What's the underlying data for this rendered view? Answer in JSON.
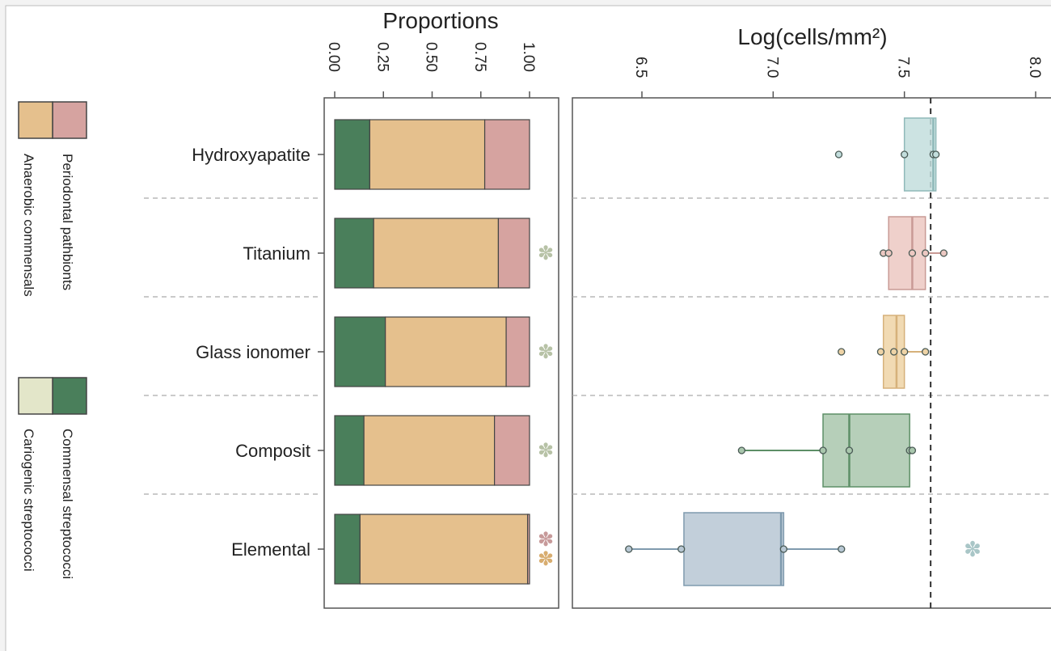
{
  "chart_data": [
    {
      "type": "bar",
      "orientation": "horizontal",
      "stacked": true,
      "title": "Proportions",
      "ticks": [
        "0.00",
        "0.25",
        "0.50",
        "0.75",
        "1.00"
      ],
      "xlim": [
        0,
        1
      ],
      "categories": [
        "Hydroxyapatite",
        "Titanium",
        "Glass ionomer",
        "Composit",
        "Elemental"
      ],
      "series": [
        {
          "name": "Cariogenic streptococci",
          "color": "#e3e6c9",
          "values": [
            0.0,
            0.0,
            0.0,
            0.0,
            0.0
          ]
        },
        {
          "name": "Commensal streptococci",
          "color": "#4a7f5b",
          "values": [
            0.18,
            0.2,
            0.26,
            0.15,
            0.13
          ]
        },
        {
          "name": "Anaerobic commensals",
          "color": "#e5c08d",
          "values": [
            0.59,
            0.64,
            0.62,
            0.67,
            0.86
          ]
        },
        {
          "name": "Periodontal pathbionts",
          "color": "#d6a3a0",
          "values": [
            0.23,
            0.16,
            0.12,
            0.18,
            0.01
          ]
        }
      ],
      "significance_markers": [
        {
          "category": "Titanium",
          "symbols": [
            "✽"
          ],
          "colors": [
            "#b7c2a6"
          ]
        },
        {
          "category": "Glass ionomer",
          "symbols": [
            "✽"
          ],
          "colors": [
            "#b7c2a6"
          ]
        },
        {
          "category": "Composit",
          "symbols": [
            "✽"
          ],
          "colors": [
            "#b7c2a6"
          ]
        },
        {
          "category": "Elemental",
          "symbols": [
            "✽",
            "✽"
          ],
          "colors": [
            "#c79a9a",
            "#d8ad70"
          ]
        }
      ],
      "grid": false,
      "legend_position": "left, rotated"
    },
    {
      "type": "box",
      "orientation": "horizontal",
      "title": "Log(cells/mm²)",
      "ticks": [
        "6.5",
        "7.0",
        "7.5",
        "8.0"
      ],
      "xlim": [
        6.15,
        8.1
      ],
      "reference_line": 7.6,
      "categories": [
        "Hydroxyapatite",
        "Titanium",
        "Glass ionomer",
        "Composit",
        "Elemental"
      ],
      "boxes": [
        {
          "category": "Hydroxyapatite",
          "color": "#c3dedd",
          "edge": "#8fb9b9",
          "q1": 7.5,
          "median": 7.61,
          "q3": 7.62,
          "whisker_low": 7.5,
          "whisker_high": 7.62,
          "points": [
            7.25,
            7.5,
            7.61,
            7.62
          ]
        },
        {
          "category": "Titanium",
          "color": "#ecc8c2",
          "edge": "#c99a95",
          "q1": 7.44,
          "median": 7.53,
          "q3": 7.58,
          "whisker_low": 7.42,
          "whisker_high": 7.65,
          "points": [
            7.42,
            7.44,
            7.53,
            7.58,
            7.65
          ]
        },
        {
          "category": "Glass ionomer",
          "color": "#eed3a6",
          "edge": "#d6b17a",
          "q1": 7.42,
          "median": 7.47,
          "q3": 7.5,
          "whisker_low": 7.42,
          "whisker_high": 7.58,
          "points": [
            7.26,
            7.41,
            7.46,
            7.5,
            7.58
          ]
        },
        {
          "category": "Composit",
          "color": "#a9c7ad",
          "edge": "#5d8f67",
          "q1": 7.19,
          "median": 7.29,
          "q3": 7.52,
          "whisker_low": 6.88,
          "whisker_high": 7.53,
          "points": [
            6.88,
            7.19,
            7.29,
            7.52,
            7.53
          ]
        },
        {
          "category": "Elemental",
          "color": "#b7c7d3",
          "edge": "#7f9aae",
          "q1": 6.66,
          "median": 7.03,
          "q3": 7.04,
          "whisker_low": 6.45,
          "whisker_high": 7.26,
          "points": [
            6.45,
            6.65,
            7.04,
            7.26
          ]
        }
      ],
      "significance_markers": [
        {
          "category": "Elemental",
          "symbols": [
            "✽"
          ],
          "colors": [
            "#a9c6c7"
          ],
          "x": 7.76
        }
      ]
    }
  ],
  "legend": [
    {
      "label": "Periodontal pathbionts",
      "color": "#d6a3a0"
    },
    {
      "label": "Anaerobic commensals",
      "color": "#e5c08d"
    },
    {
      "label": "Commensal streptococci",
      "color": "#4a7f5b"
    },
    {
      "label": "Cariogenic streptococci",
      "color": "#e3e6c9"
    }
  ]
}
